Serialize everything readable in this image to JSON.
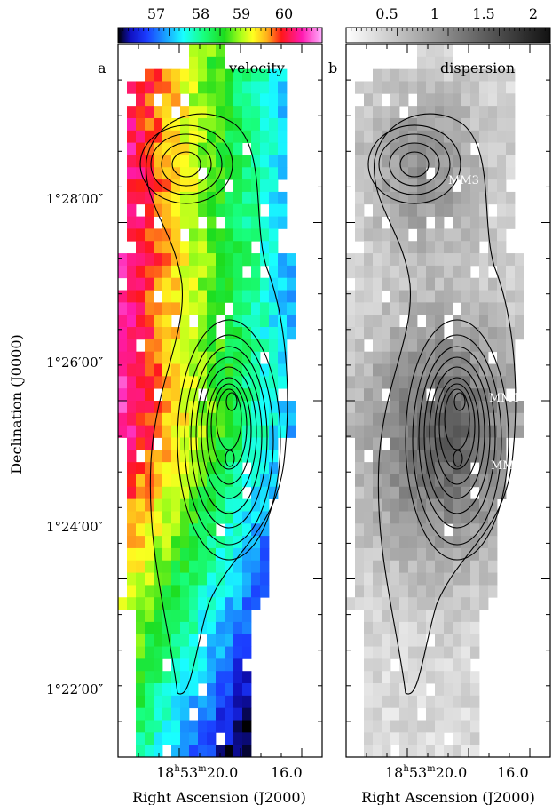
{
  "chart_data": [
    {
      "type": "heatmap",
      "panel_label": "a",
      "title": "velocity",
      "xlabel": "Right Ascension (J2000)",
      "ylabel": "Declination (J0000)",
      "x_tick_labels": [
        {
          "h": "18",
          "m": "53",
          "s": "20.0"
        },
        {
          "s": "16.0"
        }
      ],
      "y_tick_labels": [
        "1°28′00″",
        "1°26′00″",
        "1°24′00″",
        "1°22′00″"
      ],
      "colorbar": {
        "ticks": [
          "57",
          "58",
          "59",
          "60"
        ],
        "range": [
          56.3,
          60.9
        ],
        "colormap": "rainbow"
      },
      "contour_peaks": [],
      "description_note": ""
    },
    {
      "type": "heatmap",
      "panel_label": "b",
      "title": "dispersion",
      "xlabel": "Right Ascension (J2000)",
      "x_tick_labels": [
        {
          "h": "18",
          "m": "53",
          "s": "20.0"
        },
        {
          "s": "16.0"
        }
      ],
      "colorbar": {
        "ticks": [
          "0.5",
          "1",
          "1.5",
          "2"
        ],
        "range": [
          0.2,
          2.1
        ],
        "colormap": "grayscale"
      },
      "sources": [
        "MM1",
        "MM2",
        "MM3"
      ]
    }
  ]
}
